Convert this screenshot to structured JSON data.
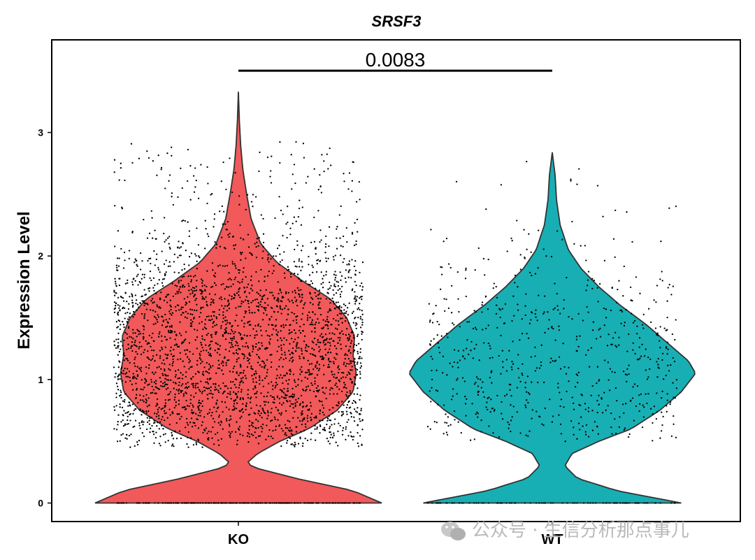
{
  "chart_data": {
    "type": "violin",
    "title": "SRSF3",
    "xlabel": "",
    "ylabel": "Expression Level",
    "ylim": [
      -0.15,
      3.75
    ],
    "yticks": [
      0,
      1,
      2,
      3
    ],
    "categories": [
      "KO",
      "WT"
    ],
    "colors": {
      "KO": "#F2595A",
      "WT": "#17AFB4"
    },
    "series": [
      {
        "name": "KO",
        "max": 3.33,
        "n_points": 3200,
        "zero_fraction": 0.08,
        "density_profile": [
          [
            0,
            0.45
          ],
          [
            0.1,
            0.36
          ],
          [
            0.2,
            0.18
          ],
          [
            0.28,
            0.06
          ],
          [
            0.32,
            0.025
          ],
          [
            0.4,
            0.06
          ],
          [
            0.5,
            0.13
          ],
          [
            0.6,
            0.22
          ],
          [
            0.75,
            0.31
          ],
          [
            0.9,
            0.36
          ],
          [
            1.05,
            0.37
          ],
          [
            1.2,
            0.36
          ],
          [
            1.35,
            0.365
          ],
          [
            1.5,
            0.34
          ],
          [
            1.65,
            0.29
          ],
          [
            1.8,
            0.2
          ],
          [
            1.95,
            0.12
          ],
          [
            2.1,
            0.07
          ],
          [
            2.3,
            0.04
          ],
          [
            2.5,
            0.026
          ],
          [
            2.7,
            0.014
          ],
          [
            2.9,
            0.007
          ],
          [
            3.1,
            0.003
          ],
          [
            3.33,
            0
          ]
        ],
        "point_range": [
          0.45,
          2.95
        ]
      },
      {
        "name": "WT",
        "max": 2.84,
        "n_points": 750,
        "zero_fraction": 0.12,
        "density_profile": [
          [
            0,
            0.36
          ],
          [
            0.1,
            0.18
          ],
          [
            0.2,
            0.07
          ],
          [
            0.3,
            0.035
          ],
          [
            0.4,
            0.055
          ],
          [
            0.5,
            0.13
          ],
          [
            0.6,
            0.22
          ],
          [
            0.75,
            0.3
          ],
          [
            0.9,
            0.36
          ],
          [
            1.05,
            0.4
          ],
          [
            1.15,
            0.38
          ],
          [
            1.3,
            0.32
          ],
          [
            1.45,
            0.26
          ],
          [
            1.6,
            0.19
          ],
          [
            1.75,
            0.13
          ],
          [
            1.9,
            0.08
          ],
          [
            2.05,
            0.045
          ],
          [
            2.25,
            0.022
          ],
          [
            2.45,
            0.012
          ],
          [
            2.65,
            0.008
          ],
          [
            2.84,
            0
          ]
        ],
        "point_range": [
          0.5,
          2.85
        ]
      }
    ],
    "annotation": {
      "text": "0.0083",
      "from": "KO",
      "to": "WT",
      "y": 3.5
    }
  },
  "watermark": {
    "text": "公众号 · 生信分析那点事儿",
    "icon": "wechat-icon"
  }
}
